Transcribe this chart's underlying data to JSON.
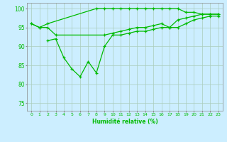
{
  "background_color": "#cceeff",
  "grid_color": "#aaccbb",
  "line_color": "#00bb00",
  "xlabel": "Humidité relative (%)",
  "xlim": [
    -0.5,
    23.5
  ],
  "ylim": [
    73,
    101.5
  ],
  "yticks": [
    75,
    80,
    85,
    90,
    95,
    100
  ],
  "xticks": [
    0,
    1,
    2,
    3,
    4,
    5,
    6,
    7,
    8,
    9,
    10,
    11,
    12,
    13,
    14,
    15,
    16,
    17,
    18,
    19,
    20,
    21,
    22,
    23
  ],
  "line1_x": [
    0,
    1,
    2,
    8,
    9,
    10,
    11,
    12,
    13,
    14,
    15,
    16,
    17,
    18,
    19,
    20,
    21,
    22,
    23
  ],
  "line1_y": [
    96,
    95,
    96,
    100,
    100,
    100,
    100,
    100,
    100,
    100,
    100,
    100,
    100,
    100,
    99,
    99,
    98.5,
    98.5,
    98.5
  ],
  "line2_x": [
    0,
    1,
    2,
    3,
    9,
    10,
    11,
    12,
    13,
    14,
    15,
    16,
    17,
    18,
    19,
    20,
    21,
    22,
    23
  ],
  "line2_y": [
    96,
    95,
    95,
    93,
    93,
    93.5,
    94,
    94.5,
    95,
    95,
    95.5,
    96,
    95,
    97,
    97.5,
    98,
    98.5,
    98.5,
    98.5
  ],
  "line3_x": [
    2,
    3,
    4,
    5,
    6,
    7,
    8,
    9,
    10,
    11,
    12,
    13,
    14,
    15,
    16,
    17,
    18,
    19,
    20,
    21,
    22,
    23
  ],
  "line3_y": [
    91.5,
    92,
    87,
    84,
    82,
    86,
    83,
    90,
    93,
    93,
    93.5,
    94,
    94,
    94.5,
    95,
    95,
    95,
    96,
    97,
    97.5,
    98,
    98
  ]
}
